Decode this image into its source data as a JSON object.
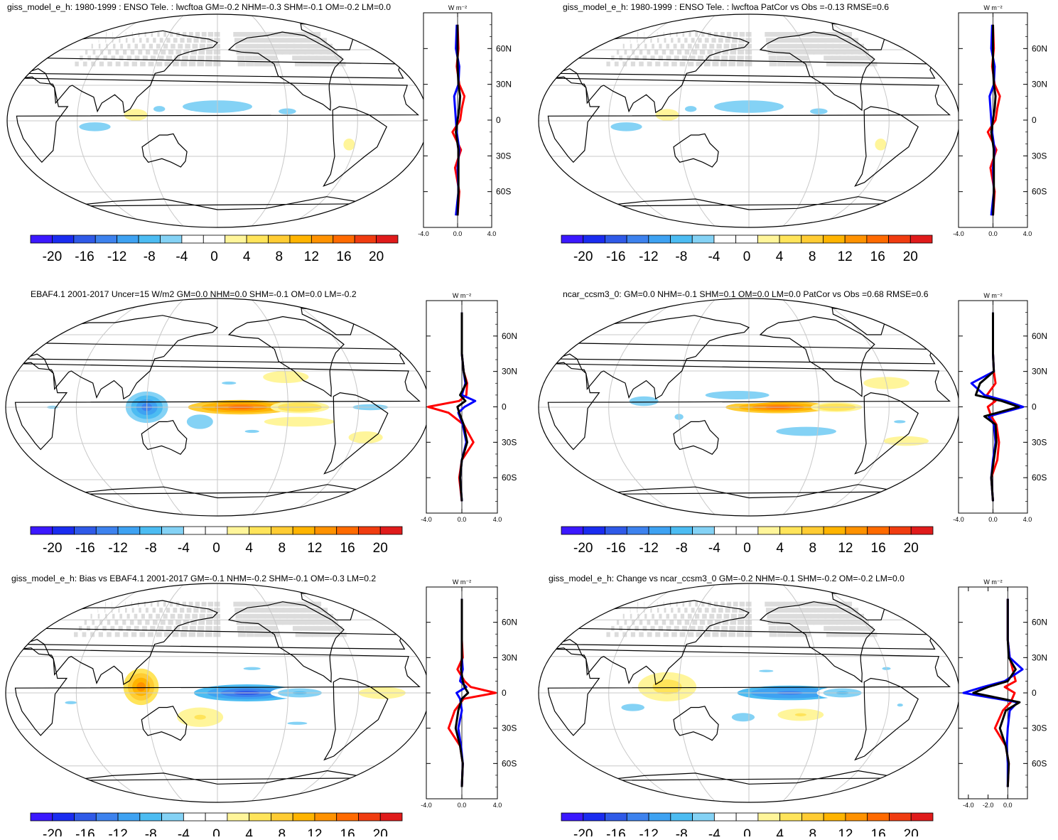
{
  "colors": {
    "ocean": "#ffffff",
    "land_mask": "#d6d6d6",
    "grid": "#c8c8c8",
    "coast": "#000000",
    "obs_line": "#0000ff",
    "model_line": "#ff0000",
    "diff_line": "#000000",
    "colorbar": [
      "#3b18ff",
      "#1a2cf0",
      "#2f5ae8",
      "#3d82ee",
      "#3ea2f2",
      "#4cbcf2",
      "#84d2f5",
      "#ffffff",
      "#ffffff",
      "#fff59a",
      "#ffe45a",
      "#ffcc33",
      "#ffb400",
      "#ff9200",
      "#ff6a00",
      "#f03c10",
      "#e01b1b"
    ]
  },
  "colorbar_labels": [
    "-20",
    "-16",
    "-12",
    "-8",
    "-4",
    "0",
    "4",
    "8",
    "12",
    "16",
    "20"
  ],
  "lat_labels": [
    "60N",
    "30N",
    "0",
    "30S",
    "60S"
  ],
  "zonal_units": "W m⁻²",
  "chart_data": [
    {
      "type": "heatmap",
      "panel": "top-left",
      "title": "giss_model_e_h: 1980-1999 : ENSO Tele. : lwcftoa GM=-0.2 NHM=-0.3 SHM=-0.1 OM=-0.2 LM=0.0",
      "xlabel": "",
      "ylabel": "",
      "clim": [
        -22,
        22
      ],
      "show_land_mask": true,
      "blobs": [
        {
          "lon": 180,
          "lat": 12,
          "rlon": 40,
          "rlat": 7,
          "value": -6
        },
        {
          "lon": 130,
          "lat": 10,
          "rlon": 10,
          "rlat": 5,
          "value": -5
        },
        {
          "lon": 75,
          "lat": -5,
          "rlon": 18,
          "rlat": 5,
          "value": -6
        },
        {
          "lon": 110,
          "lat": 5,
          "rlon": 10,
          "rlat": 5,
          "value": 3
        },
        {
          "lon": 240,
          "lat": 8,
          "rlon": 15,
          "rlat": 5,
          "value": -5
        },
        {
          "lon": 295,
          "lat": -20,
          "rlon": 5,
          "rlat": 5,
          "value": 3
        }
      ],
      "zonal": {
        "xlim": [
          -4,
          4
        ],
        "xticklabels": [
          "-4.0",
          "0.0",
          "4.0"
        ],
        "lat": [
          -80,
          -60,
          -40,
          -25,
          -10,
          0,
          10,
          20,
          30,
          45,
          60,
          80
        ],
        "series": [
          {
            "name": "model",
            "values": [
              0.0,
              0.2,
              -0.3,
              0.4,
              -0.6,
              0.3,
              0.5,
              0.8,
              0.2,
              -0.1,
              0.1,
              0.0
            ]
          },
          {
            "name": "obs",
            "values": [
              -0.2,
              0.1,
              0.0,
              0.2,
              -0.1,
              -0.2,
              -0.3,
              -0.4,
              0.1,
              0.2,
              -0.2,
              -0.1
            ]
          },
          {
            "name": "diff",
            "values": [
              0.0,
              0.1,
              0.1,
              0.1,
              -0.2,
              0.0,
              0.2,
              0.3,
              0.1,
              0.0,
              0.0,
              0.0
            ]
          }
        ]
      }
    },
    {
      "type": "heatmap",
      "panel": "top-right",
      "title": "giss_model_e_h: 1980-1999 : ENSO Tele. : lwcftoa PatCor vs Obs =-0.13 RMSE=0.6",
      "xlabel": "",
      "ylabel": "",
      "clim": [
        -22,
        22
      ],
      "show_land_mask": true,
      "blobs": [
        {
          "lon": 180,
          "lat": 12,
          "rlon": 40,
          "rlat": 7,
          "value": -6
        },
        {
          "lon": 130,
          "lat": 10,
          "rlon": 10,
          "rlat": 5,
          "value": -5
        },
        {
          "lon": 75,
          "lat": -5,
          "rlon": 18,
          "rlat": 5,
          "value": -6
        },
        {
          "lon": 110,
          "lat": 5,
          "rlon": 10,
          "rlat": 5,
          "value": 3
        },
        {
          "lon": 240,
          "lat": 8,
          "rlon": 15,
          "rlat": 5,
          "value": -5
        },
        {
          "lon": 295,
          "lat": -20,
          "rlon": 5,
          "rlat": 5,
          "value": 3
        }
      ],
      "zonal": {
        "xlim": [
          -4,
          4
        ],
        "xticklabels": [
          "-4.0",
          "0.0",
          "4.0"
        ],
        "lat": [
          -80,
          -60,
          -40,
          -25,
          -10,
          0,
          10,
          20,
          30,
          45,
          60,
          80
        ],
        "series": [
          {
            "name": "model",
            "values": [
              0.0,
              0.2,
              -0.3,
              0.4,
              -0.6,
              0.3,
              0.5,
              0.8,
              0.2,
              -0.1,
              0.1,
              0.0
            ]
          },
          {
            "name": "obs",
            "values": [
              -0.2,
              0.1,
              0.0,
              0.2,
              -0.1,
              -0.2,
              -0.3,
              -0.4,
              0.1,
              0.2,
              -0.2,
              -0.1
            ]
          },
          {
            "name": "diff",
            "values": [
              0.0,
              0.1,
              0.1,
              0.1,
              -0.2,
              0.0,
              0.2,
              0.3,
              0.1,
              0.0,
              0.0,
              0.0
            ]
          }
        ]
      }
    },
    {
      "type": "heatmap",
      "panel": "middle-left",
      "title": "EBAF4.1 2001-2017 Uncer=15 W/m2 GM=0.0 NHM=0.0 SHM=-0.1 OM=0.0 LM=-0.2",
      "xlabel": "",
      "ylabel": "",
      "clim": [
        -22,
        22
      ],
      "show_land_mask": false,
      "blobs": [
        {
          "lon": 200,
          "lat": 0,
          "rlon": 45,
          "rlat": 6,
          "value": 16
        },
        {
          "lon": 250,
          "lat": 0,
          "rlon": 25,
          "rlat": 5,
          "value": 6
        },
        {
          "lon": 120,
          "lat": 0,
          "rlon": 18,
          "rlat": 13,
          "value": -12
        },
        {
          "lon": 165,
          "lat": -12,
          "rlon": 15,
          "rlat": 8,
          "value": -6
        },
        {
          "lon": 190,
          "lat": 20,
          "rlon": 25,
          "rlat": 5,
          "value": -4
        },
        {
          "lon": 210,
          "lat": -20,
          "rlon": 25,
          "rlat": 5,
          "value": -4
        },
        {
          "lon": 310,
          "lat": 0,
          "rlon": 30,
          "rlat": 5,
          "value": -5
        },
        {
          "lon": 40,
          "lat": 0,
          "rlon": 20,
          "rlat": 5,
          "value": -4
        },
        {
          "lon": 250,
          "lat": -12,
          "rlon": 30,
          "rlat": 4,
          "value": 3
        },
        {
          "lon": 240,
          "lat": 25,
          "rlon": 20,
          "rlat": 5,
          "value": 3
        },
        {
          "lon": 310,
          "lat": -25,
          "rlon": 15,
          "rlat": 5,
          "value": 3
        }
      ],
      "zonal": {
        "xlim": [
          -4,
          4
        ],
        "xticklabels": [
          "-4.0",
          "0.0",
          "4.0"
        ],
        "lat": [
          -80,
          -60,
          -45,
          -30,
          -15,
          -5,
          0,
          5,
          10,
          20,
          30,
          45,
          60,
          80
        ],
        "series": [
          {
            "name": "model",
            "values": [
              0.0,
              -0.3,
              0.0,
              1.3,
              0.2,
              -1.5,
              -3.8,
              -0.3,
              0.5,
              0.6,
              0.2,
              0.0,
              0.0,
              0.0
            ]
          },
          {
            "name": "obs",
            "values": [
              0.0,
              -0.2,
              0.0,
              0.5,
              0.1,
              -0.4,
              0.3,
              1.5,
              0.0,
              0.4,
              0.2,
              0.0,
              0.0,
              0.0
            ]
          },
          {
            "name": "diff",
            "values": [
              0.0,
              -0.2,
              0.0,
              0.6,
              0.2,
              -0.3,
              -0.5,
              0.4,
              -0.2,
              0.5,
              0.2,
              0.0,
              0.0,
              0.0
            ]
          }
        ]
      }
    },
    {
      "type": "heatmap",
      "panel": "middle-right",
      "title": "ncar_ccsm3_0: GM=0.0 NHM=-0.1 SHM=0.1 OM=0.0 LM=0.0 PatCor vs Obs =0.68 RMSE=0.6",
      "xlabel": "",
      "ylabel": "",
      "clim": [
        -22,
        22
      ],
      "show_land_mask": false,
      "blobs": [
        {
          "lon": 205,
          "lat": 0,
          "rlon": 45,
          "rlat": 5,
          "value": 15
        },
        {
          "lon": 255,
          "lat": 0,
          "rlon": 22,
          "rlat": 4,
          "value": 6
        },
        {
          "lon": 170,
          "lat": 10,
          "rlon": 55,
          "rlat": 7,
          "value": -5
        },
        {
          "lon": 90,
          "lat": 5,
          "rlon": 25,
          "rlat": 8,
          "value": -5
        },
        {
          "lon": 230,
          "lat": -20,
          "rlon": 35,
          "rlat": 5,
          "value": -6
        },
        {
          "lon": 120,
          "lat": -8,
          "rlon": 15,
          "rlat": 10,
          "value": -4
        },
        {
          "lon": 300,
          "lat": 20,
          "rlon": 20,
          "rlat": 5,
          "value": 3
        },
        {
          "lon": 310,
          "lat": -12,
          "rlon": 20,
          "rlat": 5,
          "value": -4
        },
        {
          "lon": 320,
          "lat": -28,
          "rlon": 20,
          "rlat": 4,
          "value": 3
        }
      ],
      "zonal": {
        "xlim": [
          -4,
          4
        ],
        "xticklabels": [
          "-4.0",
          "0.0",
          "4.0"
        ],
        "lat": [
          -80,
          -60,
          -45,
          -30,
          -15,
          -8,
          0,
          5,
          10,
          20,
          30,
          45,
          60,
          80
        ],
        "series": [
          {
            "name": "model",
            "values": [
              0.0,
              -0.2,
              0.5,
              0.7,
              0.4,
              -0.2,
              -0.6,
              0.3,
              -0.7,
              0.3,
              0.1,
              0.0,
              0.0,
              0.0
            ]
          },
          {
            "name": "obs",
            "values": [
              0.0,
              -0.2,
              0.0,
              0.3,
              0.1,
              -0.5,
              3.5,
              1.5,
              -1.0,
              -2.5,
              0.1,
              0.0,
              0.0,
              0.0
            ]
          },
          {
            "name": "diff",
            "values": [
              0.0,
              -0.2,
              0.1,
              0.4,
              0.3,
              -1.0,
              3.0,
              1.0,
              -2.0,
              -1.5,
              0.1,
              0.0,
              0.0,
              0.0
            ]
          }
        ]
      }
    },
    {
      "type": "heatmap",
      "panel": "bottom-left",
      "title": "giss_model_e_h: Bias vs EBAF4.1 2001-2017 GM=-0.1 NHM=-0.2 SHM=-0.1 OM=-0.3 LM=0.2",
      "xlabel": "",
      "ylabel": "",
      "clim": [
        -22,
        22
      ],
      "show_land_mask": true,
      "blobs": [
        {
          "lon": 205,
          "lat": 0,
          "rlon": 45,
          "rlat": 7,
          "value": -16
        },
        {
          "lon": 250,
          "lat": 0,
          "rlon": 25,
          "rlat": 5,
          "value": -7
        },
        {
          "lon": 115,
          "lat": 5,
          "rlon": 15,
          "rlat": 15,
          "value": 13
        },
        {
          "lon": 165,
          "lat": -20,
          "rlon": 20,
          "rlat": 8,
          "value": 4
        },
        {
          "lon": 210,
          "lat": 20,
          "rlon": 30,
          "rlat": 5,
          "value": -4
        },
        {
          "lon": 250,
          "lat": -25,
          "rlon": 35,
          "rlat": 5,
          "value": -4
        },
        {
          "lon": 55,
          "lat": -8,
          "rlon": 20,
          "rlat": 5,
          "value": -4
        },
        {
          "lon": 320,
          "lat": 0,
          "rlon": 20,
          "rlat": 5,
          "value": 3
        }
      ],
      "zonal": {
        "xlim": [
          -4,
          4
        ],
        "xticklabels": [
          "-4.0",
          "0.0",
          "4.0"
        ],
        "lat": [
          -80,
          -60,
          -45,
          -30,
          -15,
          -5,
          0,
          5,
          10,
          20,
          30,
          45,
          60,
          80
        ],
        "series": [
          {
            "name": "model",
            "values": [
              0.0,
              0.1,
              -0.2,
              -1.5,
              -0.8,
              0.2,
              3.8,
              1.0,
              0.3,
              -0.5,
              0.1,
              0.0,
              0.0,
              0.0
            ]
          },
          {
            "name": "obs",
            "values": [
              0.0,
              0.1,
              -0.1,
              -0.4,
              0.0,
              -0.2,
              -0.6,
              0.5,
              -0.2,
              0.1,
              0.0,
              0.0,
              0.0,
              0.0
            ]
          },
          {
            "name": "diff",
            "values": [
              0.0,
              0.1,
              -0.2,
              -0.7,
              -0.4,
              0.0,
              0.7,
              0.3,
              0.1,
              -0.1,
              0.0,
              0.0,
              0.0,
              0.0
            ]
          }
        ]
      }
    },
    {
      "type": "heatmap",
      "panel": "bottom-right",
      "title": "giss_model_e_h: Change vs ncar_ccsm3_0 GM=-0.2 NHM=-0.1 SHM=-0.2 OM=-0.2 LM=0.0",
      "xlabel": "",
      "ylabel": "",
      "clim": [
        -22,
        22
      ],
      "show_land_mask": true,
      "blobs": [
        {
          "lon": 215,
          "lat": 0,
          "rlon": 45,
          "rlat": 6,
          "value": -14
        },
        {
          "lon": 260,
          "lat": 0,
          "rlon": 22,
          "rlat": 5,
          "value": -7
        },
        {
          "lon": 110,
          "lat": 5,
          "rlon": 25,
          "rlat": 12,
          "value": 5
        },
        {
          "lon": 175,
          "lat": -20,
          "rlon": 20,
          "rlat": 7,
          "value": -5
        },
        {
          "lon": 225,
          "lat": -18,
          "rlon": 20,
          "rlat": 5,
          "value": 4
        },
        {
          "lon": 80,
          "lat": -12,
          "rlon": 20,
          "rlat": 6,
          "value": -5
        },
        {
          "lon": 195,
          "lat": 18,
          "rlon": 25,
          "rlat": 4,
          "value": -4
        },
        {
          "lon": 300,
          "lat": 20,
          "rlon": 15,
          "rlat": 5,
          "value": -4
        },
        {
          "lon": 310,
          "lat": -10,
          "rlon": 10,
          "rlat": 5,
          "value": -4
        }
      ],
      "zonal": {
        "xlim": [
          -5,
          2
        ],
        "xticklabels": [
          "-4.0",
          "-2.0",
          "0.0"
        ],
        "xtickvalues": [
          -4,
          -2,
          0
        ],
        "lat": [
          -80,
          -60,
          -45,
          -30,
          -15,
          -8,
          0,
          5,
          10,
          20,
          30,
          45,
          60,
          80
        ],
        "series": [
          {
            "name": "model",
            "values": [
              0.0,
              0.1,
              -0.2,
              -1.3,
              -0.5,
              0.3,
              0.7,
              -0.3,
              0.8,
              0.5,
              0.2,
              0.0,
              0.0,
              0.0
            ]
          },
          {
            "name": "obs",
            "values": [
              0.0,
              0.0,
              -0.1,
              0.0,
              0.2,
              1.0,
              -4.5,
              -2.5,
              -0.3,
              1.5,
              0.2,
              0.0,
              0.0,
              0.0
            ]
          },
          {
            "name": "diff",
            "values": [
              0.0,
              0.1,
              -0.2,
              -0.8,
              -0.2,
              1.2,
              -3.5,
              -2.0,
              0.0,
              0.8,
              0.1,
              0.0,
              0.0,
              0.0
            ]
          }
        ]
      }
    }
  ]
}
